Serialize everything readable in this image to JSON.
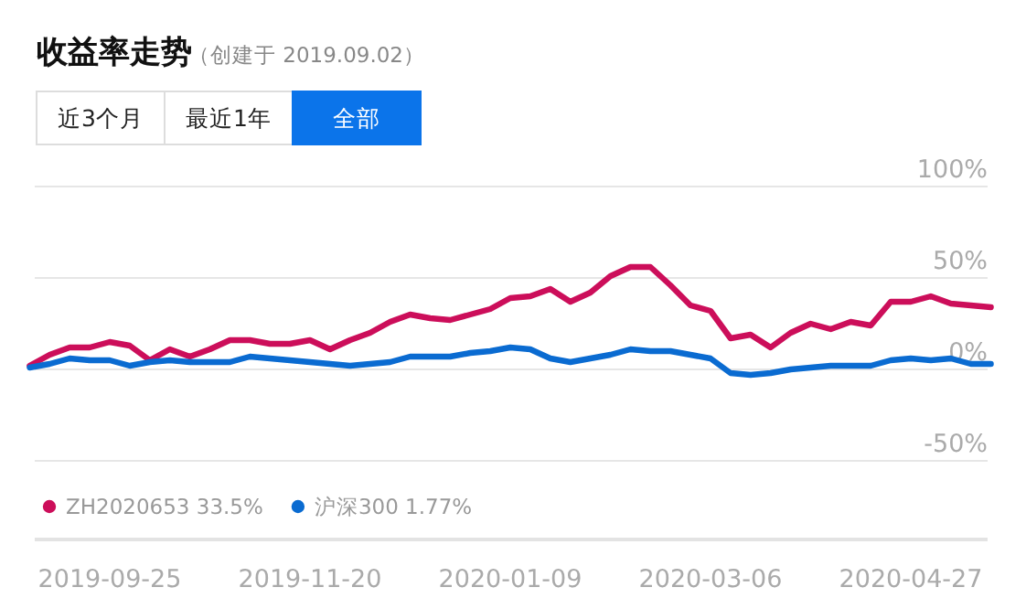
{
  "chart_data": {
    "type": "line",
    "title": "收益率走势",
    "subtitle": "（创建于 2019.09.02）",
    "annotations": [
      "近3个月",
      "最近1年",
      "全部"
    ],
    "categories": [
      null,
      null,
      null,
      null,
      "2019-09-25",
      null,
      null,
      null,
      null,
      null,
      null,
      null,
      null,
      null,
      "2019-11-20",
      null,
      null,
      null,
      null,
      null,
      null,
      null,
      null,
      null,
      "2020-01-09",
      null,
      null,
      null,
      null,
      null,
      null,
      null,
      null,
      null,
      "2020-03-06",
      null,
      null,
      null,
      null,
      null,
      null,
      null,
      null,
      null,
      "2020-04-27",
      null,
      null,
      null,
      null
    ],
    "series": [
      {
        "name": "ZH2020653 33.5%",
        "color": "#cc0e5a",
        "values": [
          2,
          8,
          12,
          12,
          15,
          13,
          5,
          11,
          7,
          11,
          16,
          16,
          14,
          14,
          16,
          11,
          16,
          20,
          26,
          30,
          28,
          27,
          30,
          33,
          39,
          40,
          44,
          37,
          42,
          51,
          56,
          56,
          46,
          35,
          32,
          17,
          19,
          12,
          20,
          25,
          22,
          26,
          24,
          37,
          37,
          40,
          36,
          35,
          34
        ]
      },
      {
        "name": "沪深300 1.77%",
        "color": "#0a6bd1",
        "values": [
          1,
          3,
          6,
          5,
          5,
          2,
          4,
          5,
          4,
          4,
          4,
          7,
          6,
          5,
          4,
          3,
          2,
          3,
          4,
          7,
          7,
          7,
          9,
          10,
          12,
          11,
          6,
          4,
          6,
          8,
          11,
          10,
          10,
          8,
          6,
          -2,
          -3,
          -2,
          0,
          1,
          2,
          2,
          2,
          5,
          6,
          5,
          6,
          3,
          3
        ]
      }
    ],
    "ylim": [
      -50,
      100
    ],
    "yticks": [
      {
        "value": -50,
        "label": "-50%"
      },
      {
        "value": 0,
        "label": "0%"
      },
      {
        "value": 50,
        "label": "50%"
      },
      {
        "value": 100,
        "label": "100%"
      }
    ],
    "grid": "y",
    "legend": "bottom left"
  }
}
